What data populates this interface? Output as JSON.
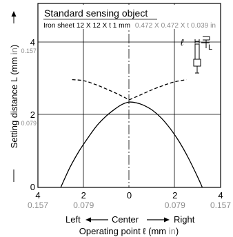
{
  "chart_data": {
    "type": "line",
    "title": "Standard sensing object",
    "subtitle_main": "Iron sheet 12 X 12 X t 1 mm",
    "subtitle_inch": "0.472 X 0.472 X t 0.039 in",
    "xlabel_prefix": "Operating point ℓ (mm ",
    "xlabel_unit": "in",
    "xlabel_suffix": ")",
    "direction_left": "Left",
    "direction_center": "Center",
    "direction_right": "Right",
    "ylabel_prefix": "Setting distance L (mm ",
    "ylabel_unit": "in",
    "ylabel_suffix": ")",
    "xlim": [
      -4,
      4
    ],
    "ylim": [
      0,
      4.5
    ],
    "x_ticks": [
      {
        "value": -4,
        "mm": "4",
        "in": "0.157"
      },
      {
        "value": -2,
        "mm": "2",
        "in": "0.079"
      },
      {
        "value": 0,
        "mm": "0",
        "in": ""
      },
      {
        "value": 2,
        "mm": "2",
        "in": "0.079"
      },
      {
        "value": 4,
        "mm": "4",
        "in": "0.157"
      }
    ],
    "y_ticks": [
      {
        "value": 0,
        "mm": "0",
        "in": ""
      },
      {
        "value": 2,
        "mm": "2",
        "in": "0.079"
      },
      {
        "value": 4,
        "mm": "4",
        "in": "0.157"
      }
    ],
    "grid": true,
    "inset_labels": {
      "ell": "ℓ",
      "L": "L"
    },
    "series": [
      {
        "style": "solid",
        "x": [
          -3.0,
          -2.6,
          -2.2,
          -1.8,
          -1.4,
          -1.0,
          -0.6,
          -0.3,
          0.0,
          0.3,
          0.6,
          1.0,
          1.4,
          1.8,
          2.2,
          2.6,
          3.0,
          3.2
        ],
        "y": [
          0.0,
          0.55,
          1.0,
          1.38,
          1.72,
          1.98,
          2.18,
          2.3,
          2.36,
          2.34,
          2.28,
          2.14,
          1.92,
          1.62,
          1.25,
          0.8,
          0.28,
          0.0
        ]
      },
      {
        "style": "dashed",
        "x": [
          -2.5,
          -2.0,
          -1.5,
          -1.0,
          -0.5,
          0.0
        ],
        "y": [
          2.98,
          2.95,
          2.85,
          2.72,
          2.58,
          2.42
        ]
      },
      {
        "style": "dashed",
        "x": [
          0.0,
          0.5,
          1.0,
          1.5,
          2.0,
          2.5
        ],
        "y": [
          2.42,
          2.56,
          2.7,
          2.82,
          2.92,
          2.98
        ]
      }
    ]
  }
}
